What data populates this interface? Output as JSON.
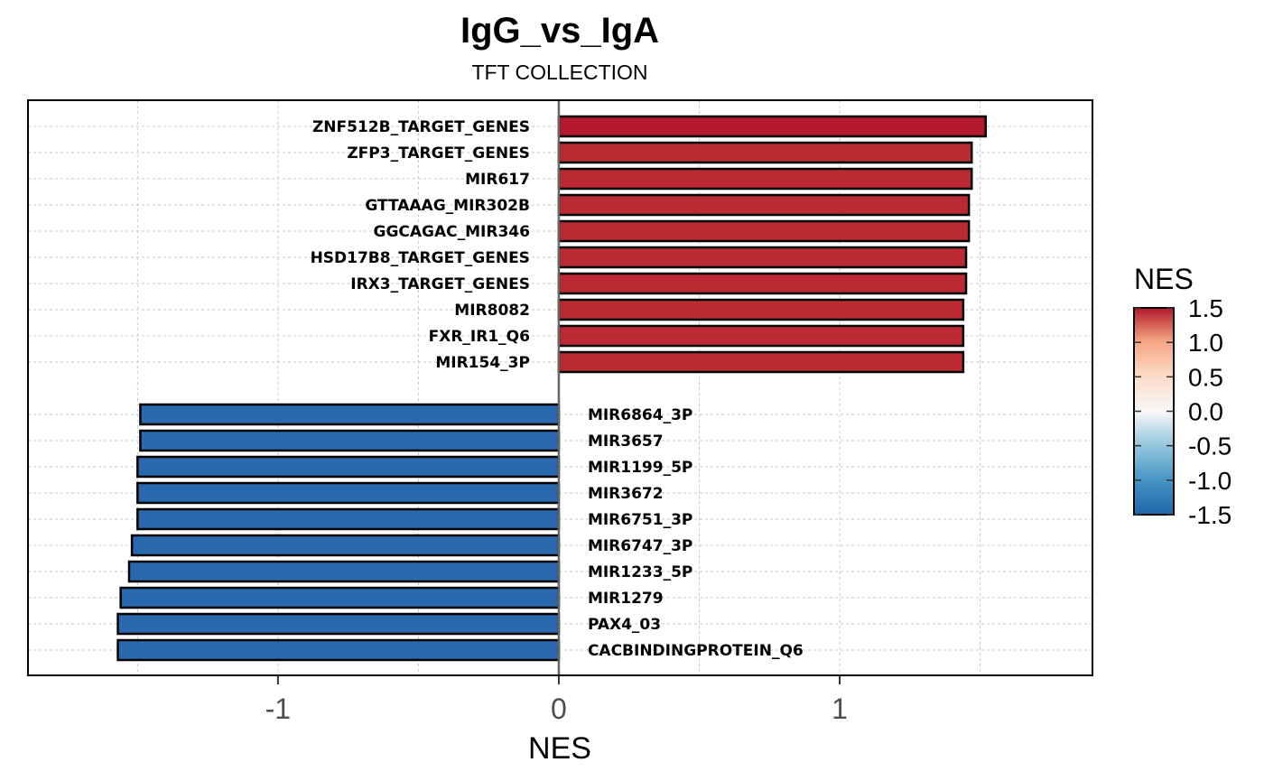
{
  "chart_data": {
    "type": "bar",
    "orientation": "horizontal",
    "title": "IgG_vs_IgA",
    "subtitle": "TFT COLLECTION",
    "xlabel": "NES",
    "ylabel": "",
    "xlim": [
      -1.89,
      1.9
    ],
    "xticks": [
      -1,
      0,
      1
    ],
    "xtick_labels": [
      "-1",
      "0",
      "1"
    ],
    "grid": true,
    "legend": {
      "title": "NES",
      "type": "colorbar",
      "placement": "right",
      "range": [
        -1.5,
        1.5
      ],
      "ticks": [
        1.5,
        1.0,
        0.5,
        0.0,
        -0.5,
        -1.0,
        -1.5
      ],
      "tick_labels": [
        "1.5",
        "1.0",
        "0.5",
        "0.0",
        "-0.5",
        "-1.0",
        "-1.5"
      ],
      "colors": {
        "low": "#2166ac",
        "mid": "#f7f7f7",
        "high": "#b2182b"
      }
    },
    "positive": {
      "categories": [
        "ZNF512B_TARGET_GENES",
        "ZFP3_TARGET_GENES",
        "MIR617",
        "GTTAAAG_MIR302B",
        "GGCAGAC_MIR346",
        "HSD17B8_TARGET_GENES",
        "IRX3_TARGET_GENES",
        "MIR8082",
        "FXR_IR1_Q6",
        "MIR154_3P"
      ],
      "values": [
        1.52,
        1.47,
        1.47,
        1.46,
        1.46,
        1.45,
        1.45,
        1.44,
        1.44,
        1.44
      ]
    },
    "negative": {
      "categories": [
        "MIR6864_3P",
        "MIR3657",
        "MIR1199_5P",
        "MIR3672",
        "MIR6751_3P",
        "MIR6747_3P",
        "MIR1233_5P",
        "MIR1279",
        "PAX4_03",
        "CACBINDINGPROTEIN_Q6"
      ],
      "values": [
        -1.49,
        -1.49,
        -1.5,
        -1.5,
        -1.5,
        -1.52,
        -1.53,
        -1.56,
        -1.57,
        -1.57
      ]
    }
  }
}
